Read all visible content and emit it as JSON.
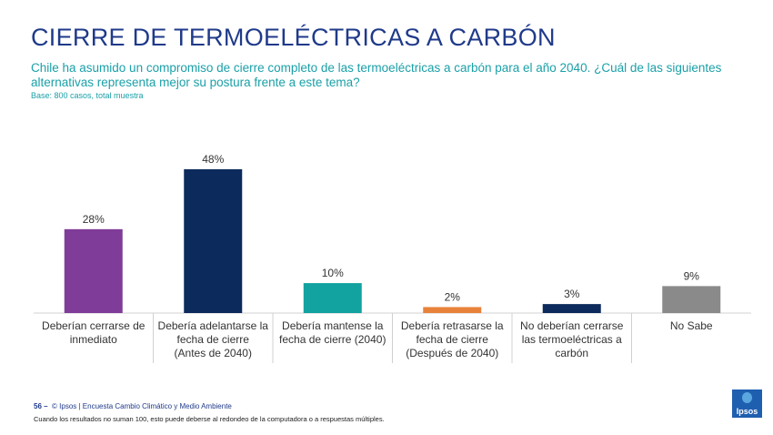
{
  "header": {
    "title": "CIERRE DE TERMOELÉCTRICAS A CARBÓN",
    "question": "Chile ha asumido un compromiso de cierre completo de las termoeléctricas a carbón para el año 2040. ¿Cuál de las siguientes alternativas representa mejor su postura frente a este tema?",
    "base": "Base: 800 casos, total muestra"
  },
  "chart_data": {
    "type": "bar",
    "categories": [
      [
        "Deberían cerrarse de",
        "inmediato"
      ],
      [
        "Debería adelantarse la",
        "fecha de cierre",
        "(Antes de 2040)"
      ],
      [
        "Debería mantense la",
        "fecha de cierre (2040)"
      ],
      [
        "Debería retrasarse la",
        "fecha de cierre",
        "(Después de 2040)"
      ],
      [
        "No deberían cerrarse",
        "las termoeléctricas a",
        "carbón"
      ],
      [
        "No Sabe"
      ]
    ],
    "values": [
      28,
      48,
      10,
      2,
      3,
      9
    ],
    "data_labels": [
      "28%",
      "48%",
      "10%",
      "2%",
      "3%",
      "9%"
    ],
    "colors": [
      "#7f3c98",
      "#0c2a5b",
      "#12a2a0",
      "#e8823a",
      "#0c2a5b",
      "#8a8a8a"
    ],
    "ylim": [
      0,
      48
    ],
    "grid": false
  },
  "footer": {
    "page": "56 –",
    "source": "© Ipsos | Encuesta Cambio Climático y Medio Ambiente",
    "note": "Cuando los resultados no suman 100, esto puede deberse al redondeo de la computadora o a respuestas múltiples."
  },
  "logo": {
    "text": "Ipsos"
  }
}
